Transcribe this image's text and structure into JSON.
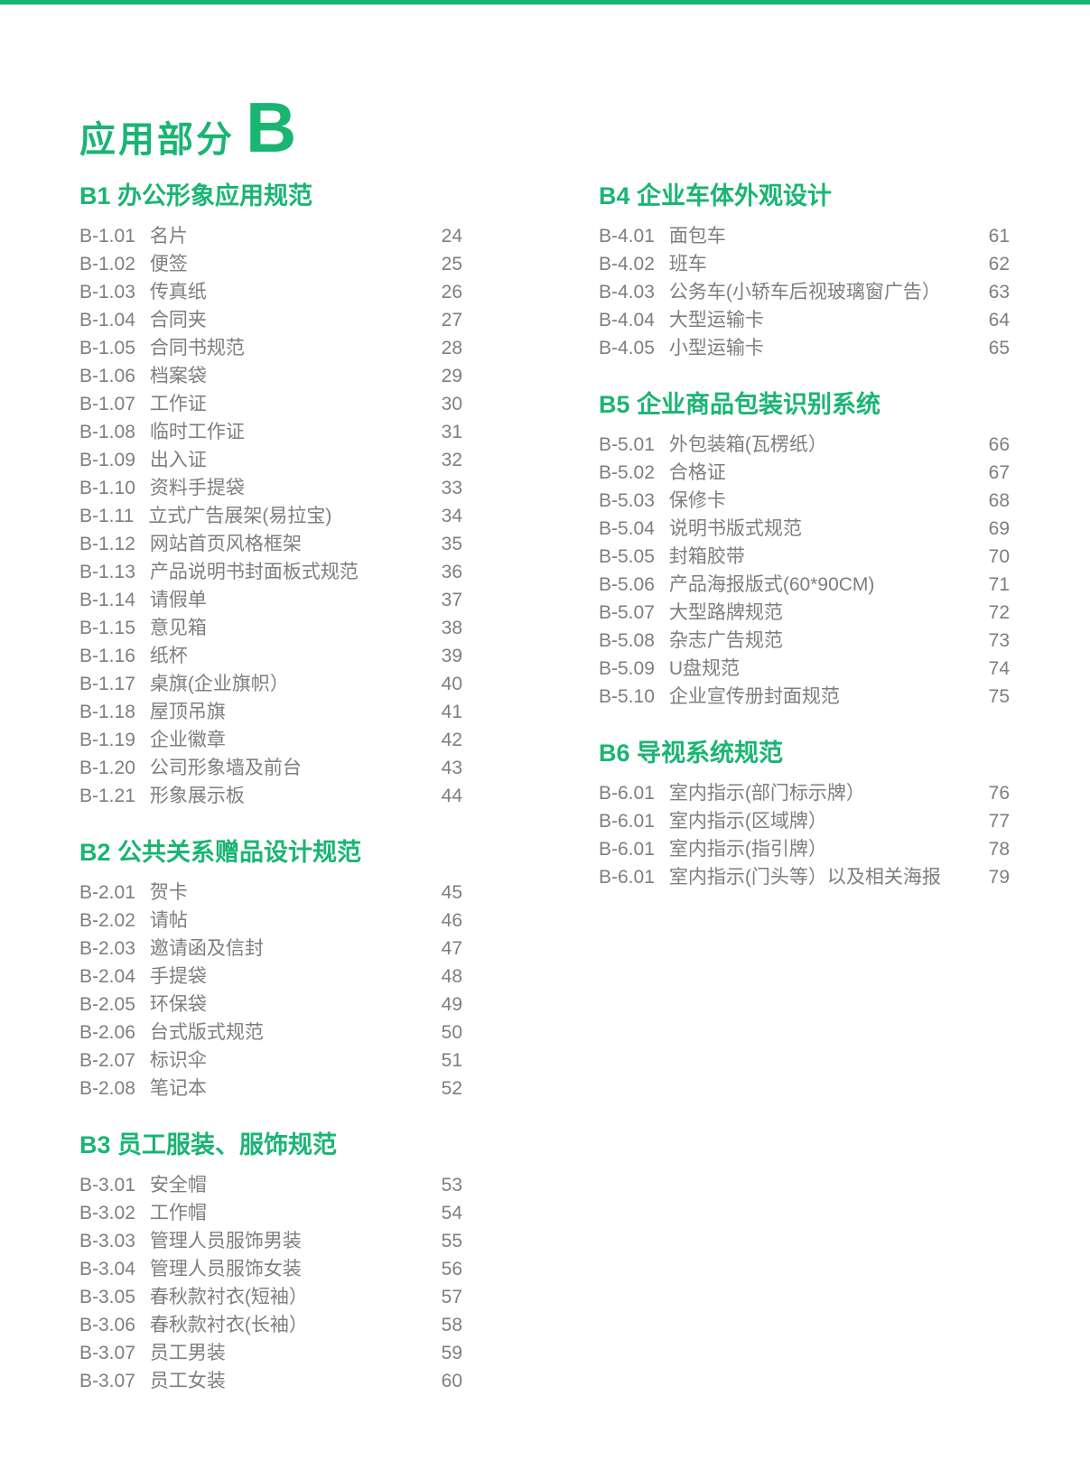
{
  "accent_color": "#1ab573",
  "text_color": "#7e7e7e",
  "title": {
    "text": "应用部分",
    "letter": "B"
  },
  "sections": [
    {
      "id": "B1",
      "column": "left",
      "title": "B1 办公形象应用规范",
      "items": [
        {
          "code": "B-1.01",
          "label": "名片",
          "page": "24"
        },
        {
          "code": "B-1.02",
          "label": "便签",
          "page": "25"
        },
        {
          "code": "B-1.03",
          "label": "传真纸",
          "page": "26"
        },
        {
          "code": "B-1.04",
          "label": "合同夹",
          "page": "27"
        },
        {
          "code": "B-1.05",
          "label": "合同书规范",
          "page": "28"
        },
        {
          "code": "B-1.06",
          "label": "档案袋",
          "page": "29"
        },
        {
          "code": "B-1.07",
          "label": "工作证",
          "page": "30"
        },
        {
          "code": "B-1.08",
          "label": "临时工作证",
          "page": "31"
        },
        {
          "code": "B-1.09",
          "label": "出入证",
          "page": "32"
        },
        {
          "code": "B-1.10",
          "label": "资料手提袋",
          "page": "33"
        },
        {
          "code": "B-1.11",
          "label": "立式广告展架(易拉宝)",
          "page": "34"
        },
        {
          "code": "B-1.12",
          "label": "网站首页风格框架",
          "page": "35"
        },
        {
          "code": "B-1.13",
          "label": "产品说明书封面板式规范",
          "page": "36"
        },
        {
          "code": "B-1.14",
          "label": "请假单",
          "page": "37"
        },
        {
          "code": "B-1.15",
          "label": "意见箱",
          "page": "38"
        },
        {
          "code": "B-1.16",
          "label": "纸杯",
          "page": "39"
        },
        {
          "code": "B-1.17",
          "label": "桌旗(企业旗帜）",
          "page": "40"
        },
        {
          "code": "B-1.18",
          "label": "屋顶吊旗",
          "page": "41"
        },
        {
          "code": "B-1.19",
          "label": "企业徽章",
          "page": "42"
        },
        {
          "code": "B-1.20",
          "label": "公司形象墙及前台",
          "page": "43"
        },
        {
          "code": "B-1.21",
          "label": "形象展示板",
          "page": "44"
        }
      ]
    },
    {
      "id": "B2",
      "column": "left",
      "title": "B2 公共关系赠品设计规范",
      "items": [
        {
          "code": "B-2.01",
          "label": "贺卡",
          "page": "45"
        },
        {
          "code": "B-2.02",
          "label": "请帖",
          "page": "46"
        },
        {
          "code": "B-2.03",
          "label": "邀请函及信封",
          "page": "47"
        },
        {
          "code": "B-2.04",
          "label": "手提袋",
          "page": "48"
        },
        {
          "code": "B-2.05",
          "label": "环保袋",
          "page": "49"
        },
        {
          "code": "B-2.06",
          "label": "台式版式规范",
          "page": "50"
        },
        {
          "code": "B-2.07",
          "label": "标识伞",
          "page": "51"
        },
        {
          "code": "B-2.08",
          "label": "笔记本",
          "page": "52"
        }
      ]
    },
    {
      "id": "B3",
      "column": "left",
      "title": "B3 员工服装、服饰规范",
      "items": [
        {
          "code": "B-3.01",
          "label": "安全帽",
          "page": "53"
        },
        {
          "code": "B-3.02",
          "label": "工作帽",
          "page": "54"
        },
        {
          "code": "B-3.03",
          "label": "管理人员服饰男装",
          "page": "55"
        },
        {
          "code": "B-3.04",
          "label": "管理人员服饰女装",
          "page": "56"
        },
        {
          "code": "B-3.05",
          "label": "春秋款衬衣(短袖）",
          "page": "57"
        },
        {
          "code": "B-3.06",
          "label": "春秋款衬衣(长袖）",
          "page": "58"
        },
        {
          "code": "B-3.07",
          "label": "员工男装",
          "page": "59"
        },
        {
          "code": "B-3.07",
          "label": "员工女装",
          "page": "60"
        }
      ]
    },
    {
      "id": "B4",
      "column": "right",
      "title": "B4 企业车体外观设计",
      "items": [
        {
          "code": "B-4.01",
          "label": "面包车",
          "page": "61"
        },
        {
          "code": "B-4.02",
          "label": "班车",
          "page": "62"
        },
        {
          "code": "B-4.03",
          "label": "公务车(小轿车后视玻璃窗广告）",
          "page": "63"
        },
        {
          "code": "B-4.04",
          "label": "大型运输卡",
          "page": "64"
        },
        {
          "code": "B-4.05",
          "label": "小型运输卡",
          "page": "65"
        }
      ]
    },
    {
      "id": "B5",
      "column": "right",
      "title": "B5 企业商品包装识别系统",
      "items": [
        {
          "code": "B-5.01",
          "label": "外包装箱(瓦楞纸）",
          "page": "66"
        },
        {
          "code": "B-5.02",
          "label": "合格证",
          "page": "67"
        },
        {
          "code": "B-5.03",
          "label": "保修卡",
          "page": "68"
        },
        {
          "code": "B-5.04",
          "label": "说明书版式规范",
          "page": "69"
        },
        {
          "code": "B-5.05",
          "label": "封箱胶带",
          "page": "70"
        },
        {
          "code": "B-5.06",
          "label": "产品海报版式(60*90CM)",
          "page": "71"
        },
        {
          "code": "B-5.07",
          "label": "大型路牌规范",
          "page": "72"
        },
        {
          "code": "B-5.08",
          "label": "杂志广告规范",
          "page": "73"
        },
        {
          "code": "B-5.09",
          "label": "U盘规范",
          "page": "74"
        },
        {
          "code": "B-5.10",
          "label": "企业宣传册封面规范",
          "page": "75"
        }
      ]
    },
    {
      "id": "B6",
      "column": "right",
      "title": "B6 导视系统规范",
      "items": [
        {
          "code": "B-6.01",
          "label": "室内指示(部门标示牌）",
          "page": "76"
        },
        {
          "code": "B-6.01",
          "label": "室内指示(区域牌）",
          "page": "77"
        },
        {
          "code": "B-6.01",
          "label": "室内指示(指引牌）",
          "page": "78"
        },
        {
          "code": "B-6.01",
          "label": "室内指示(门头等）以及相关海报",
          "page": "79"
        }
      ]
    }
  ]
}
